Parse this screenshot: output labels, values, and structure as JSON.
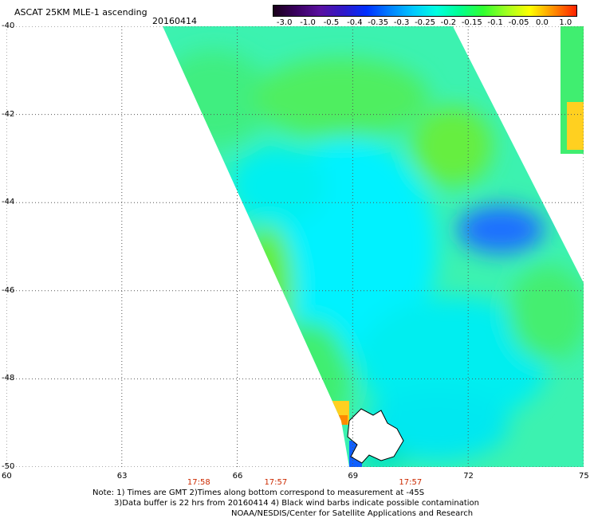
{
  "title": "ASCAT 25KM MLE-1 ascending",
  "date": "20160414",
  "colorbar": {
    "labels": [
      "-3.0",
      "-1.0",
      "-0.5",
      "-0.4",
      "-0.35",
      "-0.3",
      "-0.25",
      "-0.2",
      "-0.15",
      "-0.1",
      "-0.05",
      "0.0",
      "1.0"
    ],
    "colors": [
      "#1a001a",
      "#3a0060",
      "#5a10a0",
      "#3018c8",
      "#0030ff",
      "#0080ff",
      "#00c8ff",
      "#00ffe0",
      "#00ff90",
      "#30ff30",
      "#a0ff20",
      "#ffff00",
      "#ff9000",
      "#ff2000"
    ]
  },
  "axes": {
    "lon_labels": [
      "60",
      "63",
      "66",
      "69",
      "72",
      "75"
    ],
    "lat_labels": [
      "-40",
      "-42",
      "-44",
      "-46",
      "-48",
      "-50"
    ],
    "lon_range": [
      60,
      75
    ],
    "lat_range": [
      -50,
      -40
    ]
  },
  "time_labels": [
    {
      "text": "17:58",
      "lon": 65.0
    },
    {
      "text": "17:57",
      "lon": 67.0
    },
    {
      "text": "17:57",
      "lon": 70.5
    }
  ],
  "notes": {
    "line1": "Note: 1) Times are GMT 2)Times along bottom correspond to measurement at -45S",
    "line2": "3)Data buffer is 22 hrs from 20160414 4) Black wind barbs indicate possible contamination",
    "line3": "NOAA/NESDIS/Center for Satellite Applications and Research"
  }
}
